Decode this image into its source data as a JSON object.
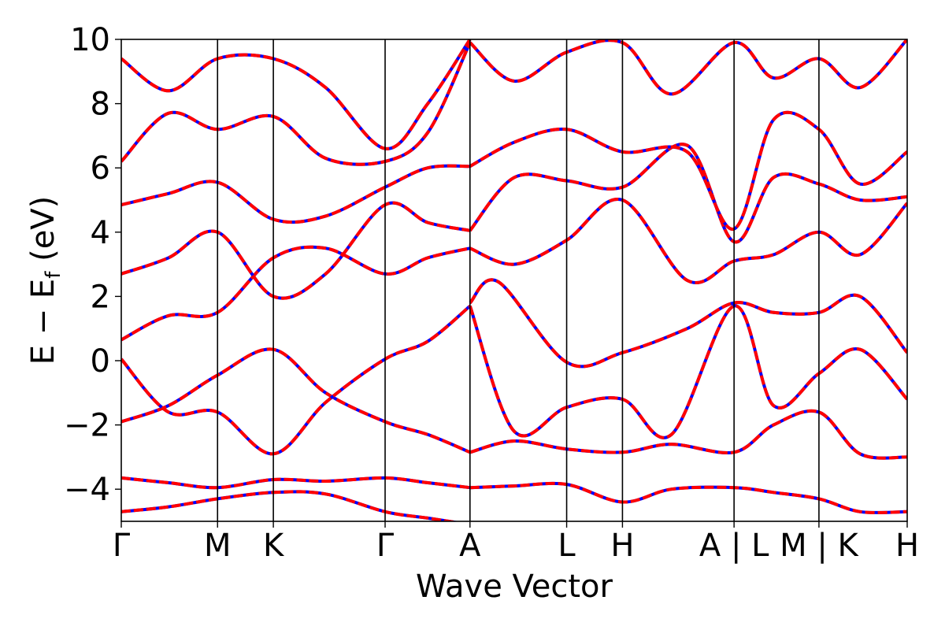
{
  "chart_data": {
    "type": "line",
    "title": "",
    "xlabel": "Wave Vector",
    "ylabel": "E − E",
    "ylabel_sub": "f",
    "ylabel_unit": " (eV)",
    "ylim": [
      -5,
      10
    ],
    "yticks": [
      -4,
      -2,
      0,
      2,
      4,
      6,
      8,
      10
    ],
    "ytick_labels": [
      "−4",
      "−2",
      "0",
      "2",
      "4",
      "6",
      "8",
      "10"
    ],
    "x_range": [
      0,
      1
    ],
    "kpoints": [
      {
        "label": "Γ",
        "x": 0.0
      },
      {
        "label": "M",
        "x": 0.1225
      },
      {
        "label": "K",
        "x": 0.1935
      },
      {
        "label": "Γ",
        "x": 0.3357
      },
      {
        "label": "A",
        "x": 0.4437
      },
      {
        "label": "L",
        "x": 0.5667
      },
      {
        "label": "H",
        "x": 0.6377
      },
      {
        "label": "A | L",
        "x": 0.7797
      },
      {
        "label": "M | K",
        "x": 0.8877
      },
      {
        "label": "H",
        "x": 1.0
      }
    ],
    "grid": false,
    "colors": {
      "band_solid": "#0000ff",
      "band_dashed": "#ff0000",
      "axis": "#000000"
    },
    "series": [
      {
        "values": [
          [
            0,
            -4.7
          ],
          [
            0.06,
            -4.55
          ],
          [
            0.1225,
            -4.3
          ],
          [
            0.1935,
            -4.1
          ],
          [
            0.26,
            -4.15
          ],
          [
            0.3357,
            -4.7
          ],
          [
            0.39,
            -4.9
          ],
          [
            0.4437,
            -5.1
          ]
        ]
      },
      {
        "values": [
          [
            0,
            -3.65
          ],
          [
            0.06,
            -3.8
          ],
          [
            0.1225,
            -3.95
          ],
          [
            0.1935,
            -3.7
          ],
          [
            0.26,
            -3.75
          ],
          [
            0.3357,
            -3.65
          ],
          [
            0.39,
            -3.8
          ],
          [
            0.4437,
            -3.95
          ]
        ]
      },
      {
        "values": [
          [
            0,
            -1.9
          ],
          [
            0.06,
            -1.4
          ],
          [
            0.1225,
            -0.45
          ],
          [
            0.1935,
            0.35
          ],
          [
            0.26,
            -1.0
          ],
          [
            0.3357,
            -1.9
          ],
          [
            0.39,
            -2.3
          ],
          [
            0.4437,
            -2.85
          ]
        ]
      },
      {
        "values": [
          [
            0,
            0.05
          ],
          [
            0.06,
            -1.6
          ],
          [
            0.1225,
            -1.6
          ],
          [
            0.1935,
            -2.9
          ],
          [
            0.26,
            -1.3
          ],
          [
            0.3357,
            0.05
          ],
          [
            0.39,
            0.6
          ],
          [
            0.4437,
            1.7
          ]
        ]
      },
      {
        "values": [
          [
            0,
            0.65
          ],
          [
            0.06,
            1.4
          ],
          [
            0.1225,
            1.5
          ],
          [
            0.1935,
            3.2
          ],
          [
            0.26,
            3.5
          ],
          [
            0.3357,
            2.7
          ],
          [
            0.39,
            3.2
          ],
          [
            0.4437,
            3.5
          ]
        ]
      },
      {
        "values": [
          [
            0,
            2.7
          ],
          [
            0.06,
            3.2
          ],
          [
            0.1225,
            4.0
          ],
          [
            0.1935,
            2.0
          ],
          [
            0.26,
            2.7
          ],
          [
            0.3357,
            4.85
          ],
          [
            0.39,
            4.3
          ],
          [
            0.4437,
            4.05
          ]
        ]
      },
      {
        "values": [
          [
            0,
            4.85
          ],
          [
            0.06,
            5.2
          ],
          [
            0.1225,
            5.55
          ],
          [
            0.1935,
            4.4
          ],
          [
            0.26,
            4.5
          ],
          [
            0.3357,
            5.4
          ],
          [
            0.39,
            6.0
          ],
          [
            0.4437,
            6.05
          ]
        ]
      },
      {
        "values": [
          [
            0,
            6.2
          ],
          [
            0.06,
            7.7
          ],
          [
            0.1225,
            7.2
          ],
          [
            0.1935,
            7.6
          ],
          [
            0.26,
            6.3
          ],
          [
            0.3357,
            6.2
          ],
          [
            0.39,
            7.1
          ],
          [
            0.4437,
            9.9
          ]
        ]
      },
      {
        "values": [
          [
            0,
            9.4
          ],
          [
            0.06,
            8.4
          ],
          [
            0.1225,
            9.4
          ],
          [
            0.1935,
            9.4
          ],
          [
            0.26,
            8.5
          ],
          [
            0.3357,
            6.6
          ],
          [
            0.39,
            8.0
          ],
          [
            0.4437,
            10.0
          ]
        ]
      },
      {
        "values": [
          [
            0.4437,
            -3.95
          ],
          [
            0.5,
            -3.9
          ],
          [
            0.5667,
            -3.85
          ],
          [
            0.6377,
            -4.4
          ],
          [
            0.7,
            -4.0
          ],
          [
            0.7797,
            -3.95
          ],
          [
            0.83,
            -4.1
          ],
          [
            0.8877,
            -4.3
          ],
          [
            0.94,
            -4.7
          ],
          [
            1.0,
            -4.7
          ]
        ]
      },
      {
        "values": [
          [
            0.4437,
            -2.85
          ],
          [
            0.5,
            -2.5
          ],
          [
            0.5667,
            -2.75
          ],
          [
            0.6377,
            -2.85
          ],
          [
            0.7,
            -2.6
          ],
          [
            0.7797,
            -2.85
          ],
          [
            0.83,
            -2.0
          ],
          [
            0.8877,
            -1.6
          ],
          [
            0.94,
            -2.9
          ],
          [
            1.0,
            -3.0
          ]
        ]
      },
      {
        "values": [
          [
            0.4437,
            1.7
          ],
          [
            0.5,
            -2.2
          ],
          [
            0.5667,
            -1.45
          ],
          [
            0.6377,
            -1.2
          ],
          [
            0.7,
            -2.3
          ],
          [
            0.7797,
            1.7
          ],
          [
            0.83,
            -1.4
          ],
          [
            0.8877,
            -0.4
          ],
          [
            0.94,
            0.35
          ],
          [
            1.0,
            -1.2
          ]
        ]
      },
      {
        "values": [
          [
            0.4437,
            1.8
          ],
          [
            0.48,
            2.45
          ],
          [
            0.5667,
            -0.05
          ],
          [
            0.6377,
            0.25
          ],
          [
            0.72,
            1.0
          ],
          [
            0.7797,
            1.8
          ],
          [
            0.83,
            1.5
          ],
          [
            0.8877,
            1.5
          ],
          [
            0.94,
            2.0
          ],
          [
            1.0,
            0.25
          ]
        ]
      },
      {
        "values": [
          [
            0.4437,
            3.5
          ],
          [
            0.5,
            3.0
          ],
          [
            0.5667,
            3.75
          ],
          [
            0.6377,
            5.0
          ],
          [
            0.72,
            2.5
          ],
          [
            0.7797,
            3.1
          ],
          [
            0.83,
            3.3
          ],
          [
            0.8877,
            4.0
          ],
          [
            0.94,
            3.3
          ],
          [
            1.0,
            4.9
          ]
        ]
      },
      {
        "values": [
          [
            0.4437,
            4.05
          ],
          [
            0.5,
            5.7
          ],
          [
            0.5667,
            5.6
          ],
          [
            0.6377,
            5.4
          ],
          [
            0.72,
            6.7
          ],
          [
            0.7797,
            3.7
          ],
          [
            0.83,
            5.7
          ],
          [
            0.8877,
            5.5
          ],
          [
            0.94,
            5.0
          ],
          [
            1.0,
            5.1
          ]
        ]
      },
      {
        "values": [
          [
            0.4437,
            6.05
          ],
          [
            0.5,
            6.8
          ],
          [
            0.5667,
            7.2
          ],
          [
            0.6377,
            6.5
          ],
          [
            0.72,
            6.5
          ],
          [
            0.7797,
            4.1
          ],
          [
            0.83,
            7.5
          ],
          [
            0.8877,
            7.2
          ],
          [
            0.94,
            5.5
          ],
          [
            1.0,
            6.5
          ]
        ]
      },
      {
        "values": [
          [
            0.4437,
            9.9
          ],
          [
            0.5,
            8.7
          ],
          [
            0.5667,
            9.6
          ],
          [
            0.6377,
            9.9
          ],
          [
            0.7,
            8.3
          ],
          [
            0.7797,
            9.9
          ],
          [
            0.83,
            8.8
          ],
          [
            0.8877,
            9.4
          ],
          [
            0.94,
            8.5
          ],
          [
            1.0,
            10.0
          ]
        ]
      }
    ]
  }
}
